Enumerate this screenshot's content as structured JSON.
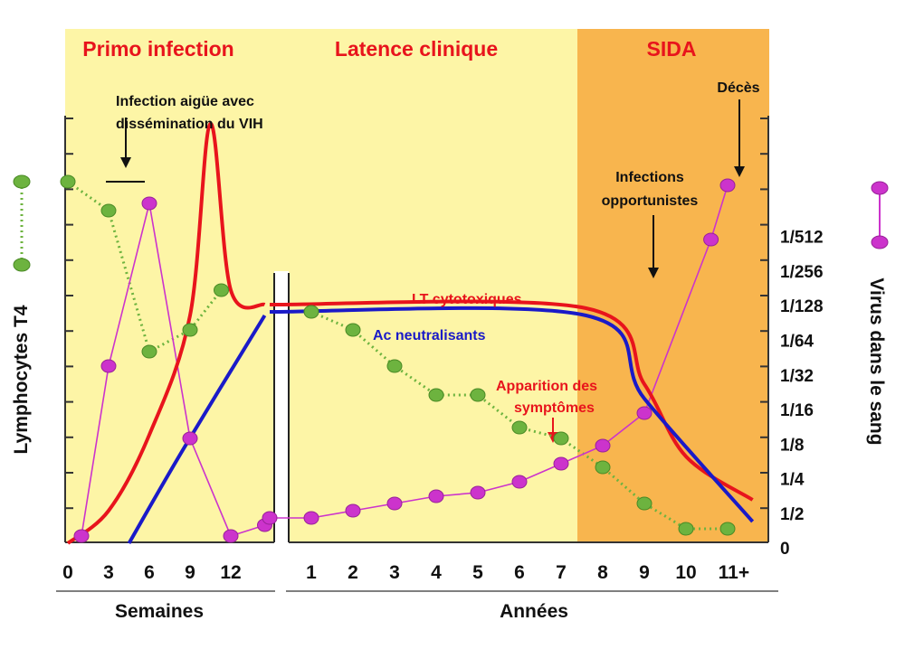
{
  "chart_data": {
    "type": "line",
    "phases": [
      {
        "label": "Primo infection",
        "color": "#fdf5a6"
      },
      {
        "label": "Latence clinique",
        "color": "#fdf5a6"
      },
      {
        "label": "SIDA",
        "color": "#f8b54e"
      }
    ],
    "x_weeks": {
      "label": "Semaines",
      "ticks": [
        "0",
        "3",
        "6",
        "9",
        "12"
      ]
    },
    "x_years": {
      "label": "Années",
      "ticks": [
        "1",
        "2",
        "3",
        "4",
        "5",
        "6",
        "7",
        "8",
        "9",
        "10",
        "11+"
      ]
    },
    "y_left_label": "Lymphocytes T4",
    "y_right_label": "Virus dans le sang",
    "y_right_ticks": [
      "0",
      "1/2",
      "1/4",
      "1/8",
      "1/16",
      "1/32",
      "1/64",
      "1/128",
      "1/256",
      "1/512"
    ],
    "series": [
      {
        "name": "Lymphocytes T4",
        "color": "#6db33f",
        "style": "dotted-markers",
        "weeks": [
          [
            0,
            10.0
          ],
          [
            3,
            9.2
          ],
          [
            6,
            5.3
          ],
          [
            9,
            5.9
          ],
          [
            11.3,
            7.0
          ]
        ],
        "years": [
          [
            1,
            6.4
          ],
          [
            2,
            5.9
          ],
          [
            3,
            4.9
          ],
          [
            4,
            4.1
          ],
          [
            5,
            4.1
          ],
          [
            6,
            3.2
          ],
          [
            7,
            2.9
          ],
          [
            8,
            2.1
          ],
          [
            9,
            1.1
          ],
          [
            10,
            0.4
          ],
          [
            11,
            0.4
          ]
        ]
      },
      {
        "name": "Virus dans le sang",
        "color": "#cc33cc",
        "style": "solid-markers",
        "weeks": [
          [
            1,
            0.2
          ],
          [
            3,
            4.9
          ],
          [
            6,
            9.4
          ],
          [
            9,
            2.9
          ],
          [
            12,
            0.2
          ],
          [
            14.5,
            0.5
          ]
        ],
        "years": [
          [
            0,
            0.7
          ],
          [
            1,
            0.7
          ],
          [
            2,
            0.9
          ],
          [
            3,
            1.1
          ],
          [
            4,
            1.3
          ],
          [
            5,
            1.4
          ],
          [
            6,
            1.7
          ],
          [
            7,
            2.2
          ],
          [
            8,
            2.7
          ],
          [
            9,
            3.6
          ],
          [
            10.6,
            8.4
          ],
          [
            11,
            9.9
          ]
        ]
      },
      {
        "name": "LT cytotoxiques",
        "color": "#e8141c",
        "style": "solid",
        "weeks": [
          [
            0,
            0
          ],
          [
            3,
            0.9
          ],
          [
            6,
            3.0
          ],
          [
            9,
            6.3
          ],
          [
            10.5,
            11.6
          ],
          [
            12,
            7.0
          ],
          [
            14.5,
            6.6
          ]
        ],
        "years": [
          [
            0,
            6.6
          ],
          [
            7.6,
            6.5
          ],
          [
            9,
            4.4
          ],
          [
            10,
            2.4
          ],
          [
            11.6,
            1.2
          ]
        ]
      },
      {
        "name": "Ac neutralisants",
        "color": "#1a1ac8",
        "style": "solid",
        "weeks": [
          [
            4.5,
            0
          ],
          [
            8.5,
            2.6
          ],
          [
            14.5,
            6.3
          ]
        ],
        "years": [
          [
            0,
            6.4
          ],
          [
            7.6,
            6.3
          ],
          [
            9,
            4.0
          ],
          [
            11.6,
            0.6
          ]
        ]
      }
    ],
    "annotations": [
      {
        "text_lines": [
          "Infection aigüe avec",
          "dissémination du VIH"
        ],
        "color": "black"
      },
      {
        "text_lines": [
          "LT cytotoxiques"
        ],
        "color": "red"
      },
      {
        "text_lines": [
          "Ac neutralisants"
        ],
        "color": "blue"
      },
      {
        "text_lines": [
          "Apparition des",
          "symptômes"
        ],
        "color": "red"
      },
      {
        "text_lines": [
          "Infections",
          "opportunistes"
        ],
        "color": "black"
      },
      {
        "text_lines": [
          "Décès"
        ],
        "color": "black"
      }
    ]
  }
}
